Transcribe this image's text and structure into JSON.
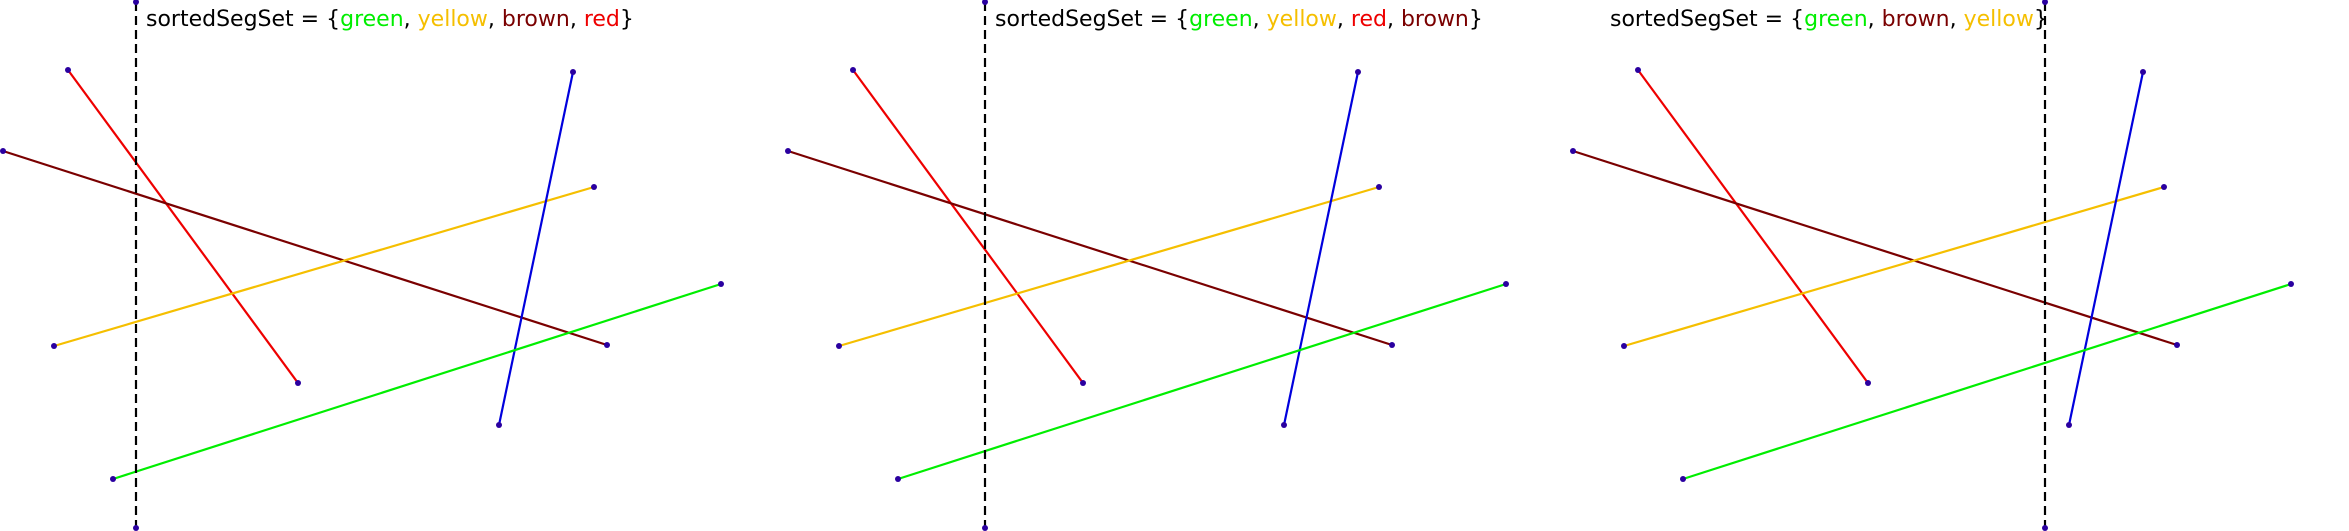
{
  "panels": [
    {
      "label_prefix": "sortedSegSet = {",
      "label_suffix": "}",
      "sorted_set": [
        {
          "name": "green",
          "color": "#00ee00"
        },
        {
          "name": "yellow",
          "color": "#f5bf00"
        },
        {
          "name": "brown",
          "color": "#7a0000"
        },
        {
          "name": "red",
          "color": "#ee0000"
        }
      ]
    },
    {
      "label_prefix": "sortedSegSet = {",
      "label_suffix": "}",
      "sorted_set": [
        {
          "name": "green",
          "color": "#00ee00"
        },
        {
          "name": "yellow",
          "color": "#f5bf00"
        },
        {
          "name": "red",
          "color": "#ee0000"
        },
        {
          "name": "brown",
          "color": "#7a0000"
        }
      ]
    },
    {
      "label_prefix": "sortedSegSet = {",
      "label_suffix": "}",
      "sorted_set": [
        {
          "name": "green",
          "color": "#00ee00"
        },
        {
          "name": "brown",
          "color": "#7a0000"
        },
        {
          "name": "yellow",
          "color": "#f5bf00"
        }
      ]
    }
  ],
  "segment_colors": {
    "red": "#ee0000",
    "brown": "#7a0000",
    "yellow": "#f5bf00",
    "blue": "#0000dd",
    "green": "#00ee00"
  },
  "endpoint_color": "#2a00a0",
  "sweep_line_color": "#000000"
}
